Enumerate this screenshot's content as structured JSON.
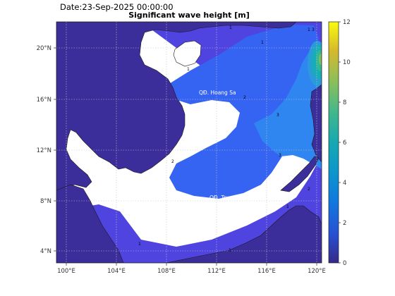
{
  "header": {
    "date_text": "Date:23-Sep-2025 00:00:00",
    "title": "Significant wave height [m]"
  },
  "map": {
    "lon_ticks": [
      "100°E",
      "104°E",
      "108°E",
      "112°E",
      "116°E",
      "120°E"
    ],
    "lat_ticks": [
      "20°N",
      "16°N",
      "12°N",
      "8°N",
      "4°N"
    ],
    "place_labels": {
      "hoang_sa": "QĐ. Hoang Sa",
      "truong_sa": "QĐ. Truong Sa"
    },
    "contour_labels": [
      "1",
      "1",
      "1",
      "1",
      "2",
      "3",
      "3",
      "2",
      "1",
      "1",
      "1",
      "2",
      "3"
    ]
  },
  "colorbar": {
    "ticks": [
      "12",
      "10",
      "8",
      "6",
      "4",
      "2",
      "0"
    ],
    "min": 0,
    "max": 12,
    "colormap": "parula"
  },
  "colors": {
    "land": "#3b2e9a",
    "sea_low": "#4f44e0",
    "sea_mid": "#3563f2",
    "sea_high": "#2f86f0",
    "coast": "#1a1a1a"
  }
}
